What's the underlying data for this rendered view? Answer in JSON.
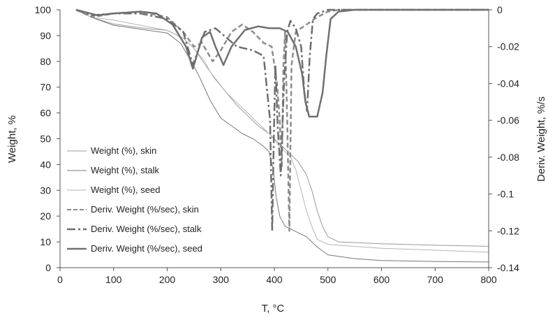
{
  "chart_data": {
    "type": "line",
    "title": "",
    "xlabel": "T, °C",
    "ylabel_left": "Weight, %",
    "ylabel_right": "Deriv. Weight, %/s",
    "xlim": [
      0,
      800
    ],
    "ylim_left": [
      0,
      100
    ],
    "ylim_right": [
      -0.14,
      0
    ],
    "x_ticks": [
      0,
      100,
      200,
      300,
      400,
      500,
      600,
      700,
      800
    ],
    "y_left_ticks": [
      0,
      10,
      20,
      30,
      40,
      50,
      60,
      70,
      80,
      90,
      100
    ],
    "y_right_ticks": [
      0,
      -0.02,
      -0.04,
      -0.06,
      -0.08,
      -0.1,
      -0.12,
      -0.14
    ],
    "y_right_tick_labels": [
      "0",
      "-0.02",
      "-0.04",
      "-0.06",
      "-0.08",
      "-0.1",
      "-0.12",
      "-0.14"
    ],
    "grid": false,
    "legend_position": "bottom-left",
    "series": [
      {
        "name": "Weight (%), skin",
        "axis": "left",
        "color": "#9a9a9a",
        "dash": "solid",
        "points": [
          [
            30,
            100
          ],
          [
            60,
            97
          ],
          [
            100,
            94.5
          ],
          [
            150,
            93
          ],
          [
            200,
            92
          ],
          [
            230,
            89
          ],
          [
            250,
            85
          ],
          [
            270,
            79
          ],
          [
            290,
            73
          ],
          [
            310,
            68
          ],
          [
            330,
            63
          ],
          [
            350,
            59
          ],
          [
            370,
            55
          ],
          [
            390,
            52
          ],
          [
            410,
            48
          ],
          [
            430,
            44
          ],
          [
            445,
            41
          ],
          [
            460,
            36
          ],
          [
            470,
            30
          ],
          [
            480,
            22
          ],
          [
            490,
            16
          ],
          [
            500,
            12
          ],
          [
            520,
            10
          ],
          [
            600,
            9.3
          ],
          [
            700,
            8.7
          ],
          [
            800,
            8.3
          ]
        ]
      },
      {
        "name": "Weight (%), stalk",
        "axis": "left",
        "color": "#777777",
        "dash": "solid",
        "points": [
          [
            30,
            100
          ],
          [
            60,
            97
          ],
          [
            100,
            94
          ],
          [
            150,
            92.5
          ],
          [
            200,
            91
          ],
          [
            225,
            87
          ],
          [
            245,
            80
          ],
          [
            260,
            74
          ],
          [
            280,
            65
          ],
          [
            300,
            58
          ],
          [
            320,
            55
          ],
          [
            340,
            52
          ],
          [
            360,
            50
          ],
          [
            380,
            47
          ],
          [
            390,
            45
          ],
          [
            398,
            38
          ],
          [
            403,
            28
          ],
          [
            410,
            20
          ],
          [
            420,
            16
          ],
          [
            440,
            14
          ],
          [
            460,
            12
          ],
          [
            480,
            8
          ],
          [
            500,
            5
          ],
          [
            550,
            3.5
          ],
          [
            600,
            2.8
          ],
          [
            700,
            2.4
          ],
          [
            800,
            2.2
          ]
        ]
      },
      {
        "name": "Weight (%), seed",
        "axis": "left",
        "color": "#b5b5b5",
        "dash": "solid",
        "points": [
          [
            30,
            100
          ],
          [
            60,
            97
          ],
          [
            100,
            96
          ],
          [
            150,
            94
          ],
          [
            200,
            92
          ],
          [
            230,
            89
          ],
          [
            250,
            85
          ],
          [
            270,
            80
          ],
          [
            280,
            76
          ],
          [
            295,
            72
          ],
          [
            310,
            68
          ],
          [
            330,
            64
          ],
          [
            350,
            60
          ],
          [
            370,
            56
          ],
          [
            390,
            52
          ],
          [
            410,
            47
          ],
          [
            430,
            43
          ],
          [
            440,
            38
          ],
          [
            450,
            30
          ],
          [
            460,
            22
          ],
          [
            470,
            16
          ],
          [
            480,
            11
          ],
          [
            500,
            9
          ],
          [
            600,
            7.5
          ],
          [
            700,
            6.8
          ],
          [
            800,
            6.0
          ]
        ]
      },
      {
        "name": "Deriv. Weight (%/sec), skin",
        "axis": "right",
        "color": "#8c8c8c",
        "dash": "7,4",
        "points": [
          [
            30,
            0
          ],
          [
            60,
            -0.004
          ],
          [
            100,
            -0.002
          ],
          [
            150,
            -0.001
          ],
          [
            200,
            -0.004
          ],
          [
            230,
            -0.012
          ],
          [
            250,
            -0.02
          ],
          [
            265,
            -0.018
          ],
          [
            285,
            -0.028
          ],
          [
            300,
            -0.022
          ],
          [
            320,
            -0.012
          ],
          [
            340,
            -0.008
          ],
          [
            360,
            -0.012
          ],
          [
            380,
            -0.018
          ],
          [
            395,
            -0.02
          ],
          [
            405,
            -0.04
          ],
          [
            410,
            -0.06
          ],
          [
            414,
            -0.085
          ],
          [
            417,
            -0.03
          ],
          [
            420,
            -0.012
          ],
          [
            424,
            -0.06
          ],
          [
            428,
            -0.12
          ],
          [
            432,
            -0.03
          ],
          [
            440,
            -0.012
          ],
          [
            460,
            -0.008
          ],
          [
            480,
            -0.004
          ],
          [
            500,
            -0.001
          ],
          [
            520,
            0
          ],
          [
            800,
            0
          ]
        ]
      },
      {
        "name": "Deriv. Weight (%/sec), stalk",
        "axis": "right",
        "color": "#6e6e6e",
        "dash": "12,4,3,4",
        "points": [
          [
            30,
            0
          ],
          [
            60,
            -0.003
          ],
          [
            100,
            -0.002
          ],
          [
            150,
            -0.002
          ],
          [
            200,
            -0.005
          ],
          [
            230,
            -0.012
          ],
          [
            248,
            -0.03
          ],
          [
            258,
            -0.022
          ],
          [
            270,
            -0.012
          ],
          [
            290,
            -0.01
          ],
          [
            310,
            -0.015
          ],
          [
            330,
            -0.02
          ],
          [
            360,
            -0.022
          ],
          [
            380,
            -0.025
          ],
          [
            392,
            -0.06
          ],
          [
            396,
            -0.12
          ],
          [
            399,
            -0.07
          ],
          [
            402,
            -0.03
          ],
          [
            406,
            -0.062
          ],
          [
            412,
            -0.09
          ],
          [
            418,
            -0.04
          ],
          [
            424,
            -0.012
          ],
          [
            430,
            -0.006
          ],
          [
            440,
            -0.01
          ],
          [
            450,
            -0.02
          ],
          [
            456,
            -0.045
          ],
          [
            461,
            -0.055
          ],
          [
            466,
            -0.025
          ],
          [
            472,
            -0.005
          ],
          [
            480,
            -0.002
          ],
          [
            500,
            0
          ],
          [
            800,
            0
          ]
        ]
      },
      {
        "name": "Deriv. Weight (%/sec), seed",
        "axis": "right",
        "color": "#707070",
        "dash": "solid",
        "points": [
          [
            30,
            0
          ],
          [
            70,
            -0.003
          ],
          [
            100,
            -0.002
          ],
          [
            150,
            -0.001
          ],
          [
            180,
            -0.002
          ],
          [
            210,
            -0.008
          ],
          [
            235,
            -0.02
          ],
          [
            248,
            -0.032
          ],
          [
            255,
            -0.025
          ],
          [
            265,
            -0.015
          ],
          [
            280,
            -0.012
          ],
          [
            290,
            -0.02
          ],
          [
            305,
            -0.03
          ],
          [
            320,
            -0.02
          ],
          [
            345,
            -0.011
          ],
          [
            370,
            -0.009
          ],
          [
            390,
            -0.01
          ],
          [
            410,
            -0.01
          ],
          [
            425,
            -0.012
          ],
          [
            440,
            -0.02
          ],
          [
            452,
            -0.035
          ],
          [
            458,
            -0.05
          ],
          [
            465,
            -0.058
          ],
          [
            480,
            -0.058
          ],
          [
            490,
            -0.045
          ],
          [
            497,
            -0.025
          ],
          [
            505,
            -0.005
          ],
          [
            520,
            -0.001
          ],
          [
            550,
            0
          ],
          [
            800,
            0
          ]
        ]
      }
    ]
  }
}
